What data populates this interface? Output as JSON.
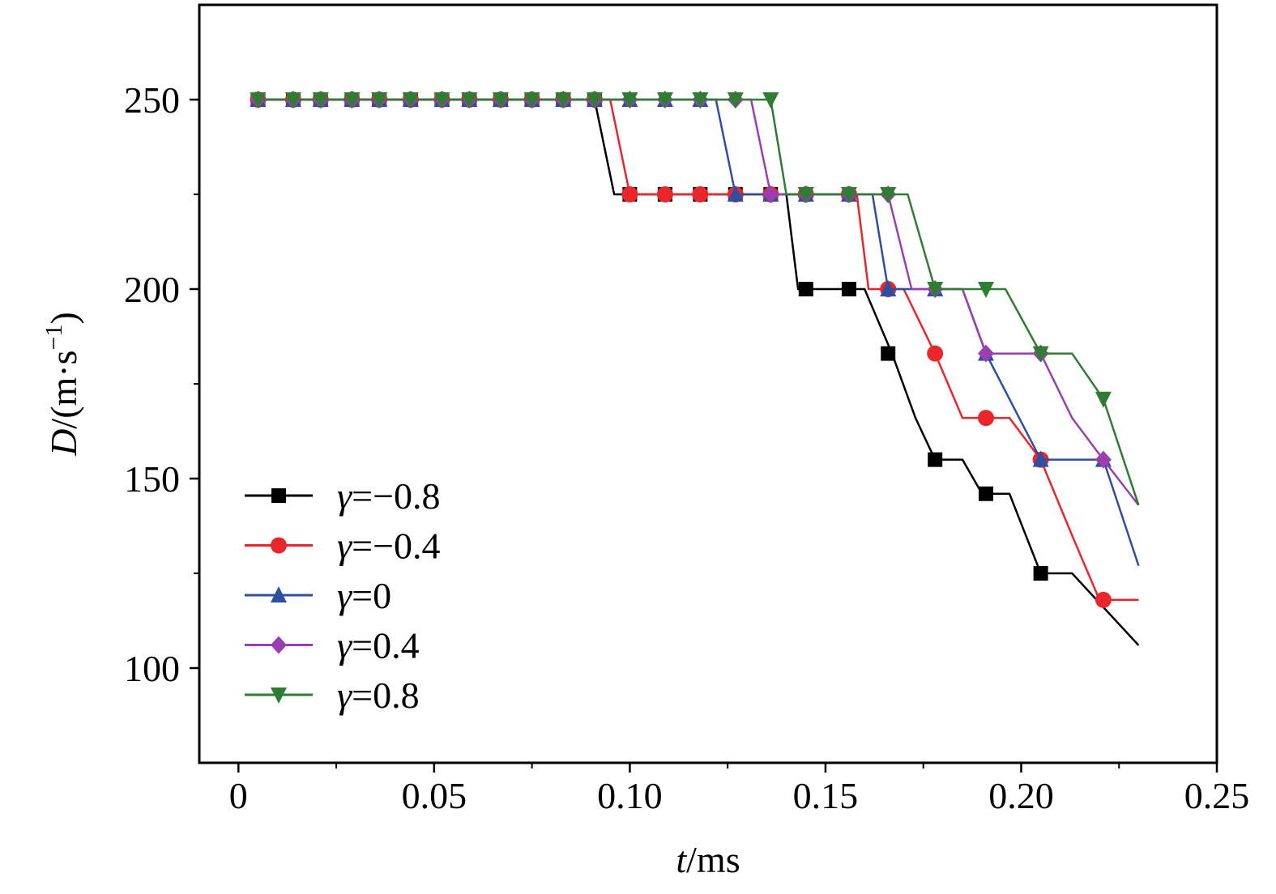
{
  "chart_data": {
    "type": "line",
    "title": "",
    "xlabel": {
      "italic": "t",
      "rest": "/ms"
    },
    "ylabel": {
      "italic": "D",
      "rest": "/(m·s",
      "sup": "−1",
      "close": ")"
    },
    "xlim": [
      -0.01,
      0.25
    ],
    "ylim": [
      75,
      275
    ],
    "x_ticks": [
      {
        "value": 0,
        "label": "0"
      },
      {
        "value": 0.05,
        "label": "0.05"
      },
      {
        "value": 0.1,
        "label": "0.10"
      },
      {
        "value": 0.15,
        "label": "0.15"
      },
      {
        "value": 0.2,
        "label": "0.20"
      },
      {
        "value": 0.25,
        "label": "0.25"
      }
    ],
    "x_minor_ticks": [
      0.025,
      0.075,
      0.125,
      0.175,
      0.225
    ],
    "y_ticks": [
      {
        "value": 100,
        "label": "100"
      },
      {
        "value": 150,
        "label": "150"
      },
      {
        "value": 200,
        "label": "200"
      },
      {
        "value": 250,
        "label": "250"
      }
    ],
    "y_minor_ticks": [
      125,
      175,
      225
    ],
    "legend_position": "bottom-left",
    "series": [
      {
        "name": "γ=−0.8",
        "symbol": "γ",
        "value_label": "=−0.8",
        "color": "#000000",
        "marker": "square",
        "line": [
          [
            0.005,
            250
          ],
          [
            0.091,
            250
          ],
          [
            0.096,
            225
          ],
          [
            0.145,
            225
          ],
          [
            0.14,
            225
          ],
          [
            0.143,
            200
          ],
          [
            0.16,
            200
          ],
          [
            0.167,
            183
          ],
          [
            0.173,
            166
          ],
          [
            0.178,
            155
          ],
          [
            0.185,
            155
          ],
          [
            0.19,
            146
          ],
          [
            0.197,
            146
          ],
          [
            0.205,
            125
          ],
          [
            0.213,
            125
          ],
          [
            0.23,
            106
          ]
        ],
        "markers": [
          [
            0.005,
            250
          ],
          [
            0.014,
            250
          ],
          [
            0.021,
            250
          ],
          [
            0.029,
            250
          ],
          [
            0.036,
            250
          ],
          [
            0.044,
            250
          ],
          [
            0.052,
            250
          ],
          [
            0.059,
            250
          ],
          [
            0.067,
            250
          ],
          [
            0.075,
            250
          ],
          [
            0.083,
            250
          ],
          [
            0.091,
            250
          ],
          [
            0.1,
            225
          ],
          [
            0.109,
            225
          ],
          [
            0.118,
            225
          ],
          [
            0.127,
            225
          ],
          [
            0.136,
            225
          ],
          [
            0.145,
            200
          ],
          [
            0.156,
            200
          ],
          [
            0.166,
            183
          ],
          [
            0.178,
            155
          ],
          [
            0.191,
            146
          ],
          [
            0.205,
            125
          ]
        ]
      },
      {
        "name": "γ=−0.4",
        "symbol": "γ",
        "value_label": "=−0.4",
        "color": "#e8262b",
        "marker": "circle",
        "line": [
          [
            0.005,
            250
          ],
          [
            0.095,
            250
          ],
          [
            0.1,
            225
          ],
          [
            0.158,
            225
          ],
          [
            0.161,
            200
          ],
          [
            0.17,
            200
          ],
          [
            0.178,
            183
          ],
          [
            0.185,
            166
          ],
          [
            0.197,
            166
          ],
          [
            0.205,
            155
          ],
          [
            0.213,
            135
          ],
          [
            0.22,
            118
          ],
          [
            0.23,
            118
          ]
        ],
        "markers": [
          [
            0.005,
            250
          ],
          [
            0.014,
            250
          ],
          [
            0.021,
            250
          ],
          [
            0.029,
            250
          ],
          [
            0.036,
            250
          ],
          [
            0.044,
            250
          ],
          [
            0.052,
            250
          ],
          [
            0.059,
            250
          ],
          [
            0.067,
            250
          ],
          [
            0.075,
            250
          ],
          [
            0.083,
            250
          ],
          [
            0.091,
            250
          ],
          [
            0.1,
            225
          ],
          [
            0.109,
            225
          ],
          [
            0.118,
            225
          ],
          [
            0.127,
            225
          ],
          [
            0.136,
            225
          ],
          [
            0.145,
            225
          ],
          [
            0.156,
            225
          ],
          [
            0.166,
            200
          ],
          [
            0.178,
            183
          ],
          [
            0.191,
            166
          ],
          [
            0.205,
            155
          ],
          [
            0.221,
            118
          ]
        ]
      },
      {
        "name": "γ=0",
        "symbol": "γ",
        "value_label": "=0",
        "color": "#2e4fa0",
        "marker": "triangle-up",
        "line": [
          [
            0.005,
            250
          ],
          [
            0.122,
            250
          ],
          [
            0.127,
            225
          ],
          [
            0.162,
            225
          ],
          [
            0.166,
            200
          ],
          [
            0.185,
            200
          ],
          [
            0.191,
            183
          ],
          [
            0.205,
            155
          ],
          [
            0.221,
            155
          ],
          [
            0.23,
            127
          ]
        ],
        "markers": [
          [
            0.005,
            250
          ],
          [
            0.014,
            250
          ],
          [
            0.021,
            250
          ],
          [
            0.029,
            250
          ],
          [
            0.036,
            250
          ],
          [
            0.044,
            250
          ],
          [
            0.052,
            250
          ],
          [
            0.059,
            250
          ],
          [
            0.067,
            250
          ],
          [
            0.075,
            250
          ],
          [
            0.083,
            250
          ],
          [
            0.091,
            250
          ],
          [
            0.1,
            250
          ],
          [
            0.109,
            250
          ],
          [
            0.118,
            250
          ],
          [
            0.127,
            225
          ],
          [
            0.136,
            225
          ],
          [
            0.145,
            225
          ],
          [
            0.156,
            225
          ],
          [
            0.166,
            200
          ],
          [
            0.178,
            200
          ],
          [
            0.191,
            183
          ],
          [
            0.205,
            155
          ],
          [
            0.221,
            155
          ]
        ]
      },
      {
        "name": "γ=0.4",
        "symbol": "γ",
        "value_label": "=0.4",
        "color": "#9b3fb0",
        "marker": "diamond",
        "line": [
          [
            0.005,
            250
          ],
          [
            0.131,
            250
          ],
          [
            0.136,
            225
          ],
          [
            0.166,
            225
          ],
          [
            0.172,
            200
          ],
          [
            0.185,
            200
          ],
          [
            0.191,
            183
          ],
          [
            0.205,
            183
          ],
          [
            0.213,
            166
          ],
          [
            0.221,
            155
          ],
          [
            0.23,
            143
          ]
        ],
        "markers": [
          [
            0.005,
            250
          ],
          [
            0.014,
            250
          ],
          [
            0.021,
            250
          ],
          [
            0.029,
            250
          ],
          [
            0.036,
            250
          ],
          [
            0.044,
            250
          ],
          [
            0.052,
            250
          ],
          [
            0.059,
            250
          ],
          [
            0.067,
            250
          ],
          [
            0.075,
            250
          ],
          [
            0.083,
            250
          ],
          [
            0.091,
            250
          ],
          [
            0.1,
            250
          ],
          [
            0.109,
            250
          ],
          [
            0.118,
            250
          ],
          [
            0.127,
            250
          ],
          [
            0.136,
            225
          ],
          [
            0.145,
            225
          ],
          [
            0.156,
            225
          ],
          [
            0.166,
            225
          ],
          [
            0.178,
            200
          ],
          [
            0.191,
            183
          ],
          [
            0.205,
            183
          ],
          [
            0.221,
            155
          ]
        ]
      },
      {
        "name": "γ=0.8",
        "symbol": "γ",
        "value_label": "=0.8",
        "color": "#2e7d32",
        "marker": "triangle-down",
        "line": [
          [
            0.005,
            250
          ],
          [
            0.136,
            250
          ],
          [
            0.14,
            225
          ],
          [
            0.171,
            225
          ],
          [
            0.178,
            200
          ],
          [
            0.196,
            200
          ],
          [
            0.205,
            183
          ],
          [
            0.213,
            183
          ],
          [
            0.221,
            171
          ],
          [
            0.23,
            143
          ]
        ],
        "markers": [
          [
            0.005,
            250
          ],
          [
            0.014,
            250
          ],
          [
            0.021,
            250
          ],
          [
            0.029,
            250
          ],
          [
            0.036,
            250
          ],
          [
            0.044,
            250
          ],
          [
            0.052,
            250
          ],
          [
            0.059,
            250
          ],
          [
            0.067,
            250
          ],
          [
            0.075,
            250
          ],
          [
            0.083,
            250
          ],
          [
            0.091,
            250
          ],
          [
            0.1,
            250
          ],
          [
            0.109,
            250
          ],
          [
            0.118,
            250
          ],
          [
            0.127,
            250
          ],
          [
            0.136,
            250
          ],
          [
            0.145,
            225
          ],
          [
            0.156,
            225
          ],
          [
            0.166,
            225
          ],
          [
            0.178,
            200
          ],
          [
            0.191,
            200
          ],
          [
            0.205,
            183
          ],
          [
            0.221,
            171
          ]
        ]
      }
    ]
  }
}
